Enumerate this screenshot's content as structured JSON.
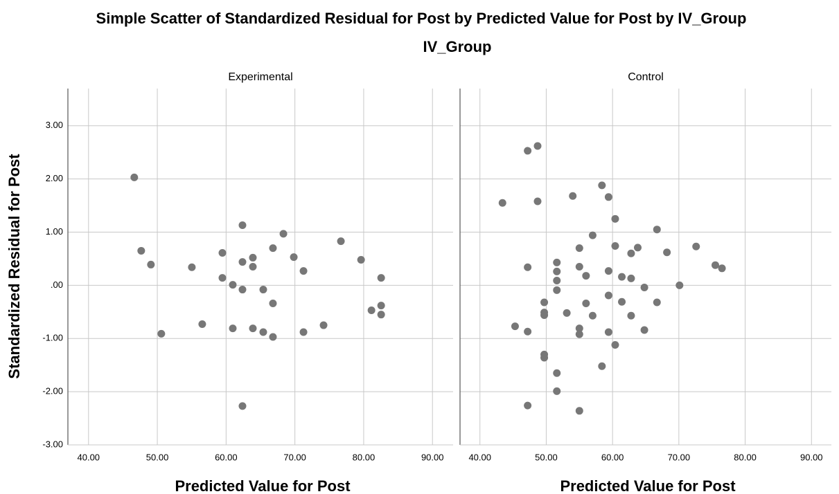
{
  "chart_data": {
    "type": "scatter",
    "title": "Simple Scatter of Standardized Residual for Post by Predicted Value for Post by IV_Group",
    "subtitle": "IV_Group",
    "x_label": "Predicted Value for Post",
    "y_label": "Standardized Residual for Post",
    "color": "#777777",
    "grid": true,
    "xlim": [
      37,
      93
    ],
    "ylim": [
      -3,
      3.7
    ],
    "xticks": [
      {
        "value": 40,
        "label": "40.00"
      },
      {
        "value": 50,
        "label": "50.00"
      },
      {
        "value": 60,
        "label": "60.00"
      },
      {
        "value": 70,
        "label": "70.00"
      },
      {
        "value": 80,
        "label": "80.00"
      },
      {
        "value": 90,
        "label": "90.00"
      }
    ],
    "yticks": [
      {
        "value": -3,
        "label": "-3.00"
      },
      {
        "value": -2,
        "label": "-2.00"
      },
      {
        "value": -1,
        "label": "-1.00"
      },
      {
        "value": 0,
        "label": ".00"
      },
      {
        "value": 1,
        "label": "1.00"
      },
      {
        "value": 2,
        "label": "2.00"
      },
      {
        "value": 3,
        "label": "3.00"
      }
    ],
    "series": [
      {
        "name": "Experimental",
        "x": [
          46.65,
          47.66,
          49.07,
          50.58,
          55.02,
          56.53,
          59.46,
          59.46,
          60.97,
          60.97,
          62.38,
          62.38,
          62.38,
          62.38,
          63.89,
          63.89,
          63.89,
          65.4,
          65.4,
          66.81,
          66.81,
          66.81,
          68.33,
          69.84,
          71.25,
          71.25,
          74.17,
          76.69,
          79.62,
          81.13,
          82.54,
          82.54,
          82.54
        ],
        "values": [
          2.03,
          0.65,
          0.39,
          -0.91,
          0.34,
          -0.73,
          0.61,
          0.14,
          0.01,
          -0.81,
          1.13,
          0.44,
          -0.08,
          -2.27,
          0.52,
          0.35,
          -0.81,
          -0.08,
          -0.88,
          0.7,
          -0.34,
          -0.97,
          0.97,
          0.53,
          0.27,
          -0.88,
          -0.75,
          0.83,
          0.48,
          -0.47,
          0.14,
          -0.38,
          -0.55
        ]
      },
      {
        "name": "Control",
        "x": [
          43.4,
          45.3,
          47.2,
          47.2,
          47.2,
          47.2,
          48.7,
          48.7,
          49.7,
          49.7,
          49.7,
          49.7,
          49.7,
          51.6,
          51.6,
          51.6,
          51.6,
          51.6,
          51.6,
          53.1,
          54.0,
          55.0,
          55.0,
          55.0,
          55.0,
          55.0,
          56.0,
          56.0,
          57.0,
          57.0,
          58.4,
          58.4,
          59.4,
          59.4,
          59.4,
          59.4,
          60.4,
          60.4,
          60.4,
          61.4,
          61.4,
          62.8,
          62.8,
          62.8,
          63.8,
          64.8,
          64.8,
          66.7,
          66.7,
          68.2,
          70.1,
          72.6,
          75.5,
          76.5
        ],
        "values": [
          1.55,
          -0.77,
          2.53,
          0.34,
          -0.87,
          -2.26,
          2.62,
          1.58,
          -0.32,
          -0.51,
          -0.56,
          -1.3,
          -1.36,
          0.43,
          0.26,
          0.09,
          -0.09,
          -1.65,
          -1.99,
          -0.52,
          1.68,
          0.7,
          0.35,
          -0.81,
          -0.92,
          -2.36,
          0.18,
          -0.34,
          0.94,
          -0.57,
          1.88,
          -1.52,
          1.66,
          0.27,
          -0.19,
          -0.88,
          1.25,
          0.74,
          -1.12,
          0.16,
          -0.31,
          0.6,
          0.13,
          -0.57,
          0.71,
          -0.04,
          -0.84,
          1.05,
          -0.32,
          0.62,
          0.0,
          0.73,
          0.38,
          0.32
        ]
      }
    ]
  }
}
